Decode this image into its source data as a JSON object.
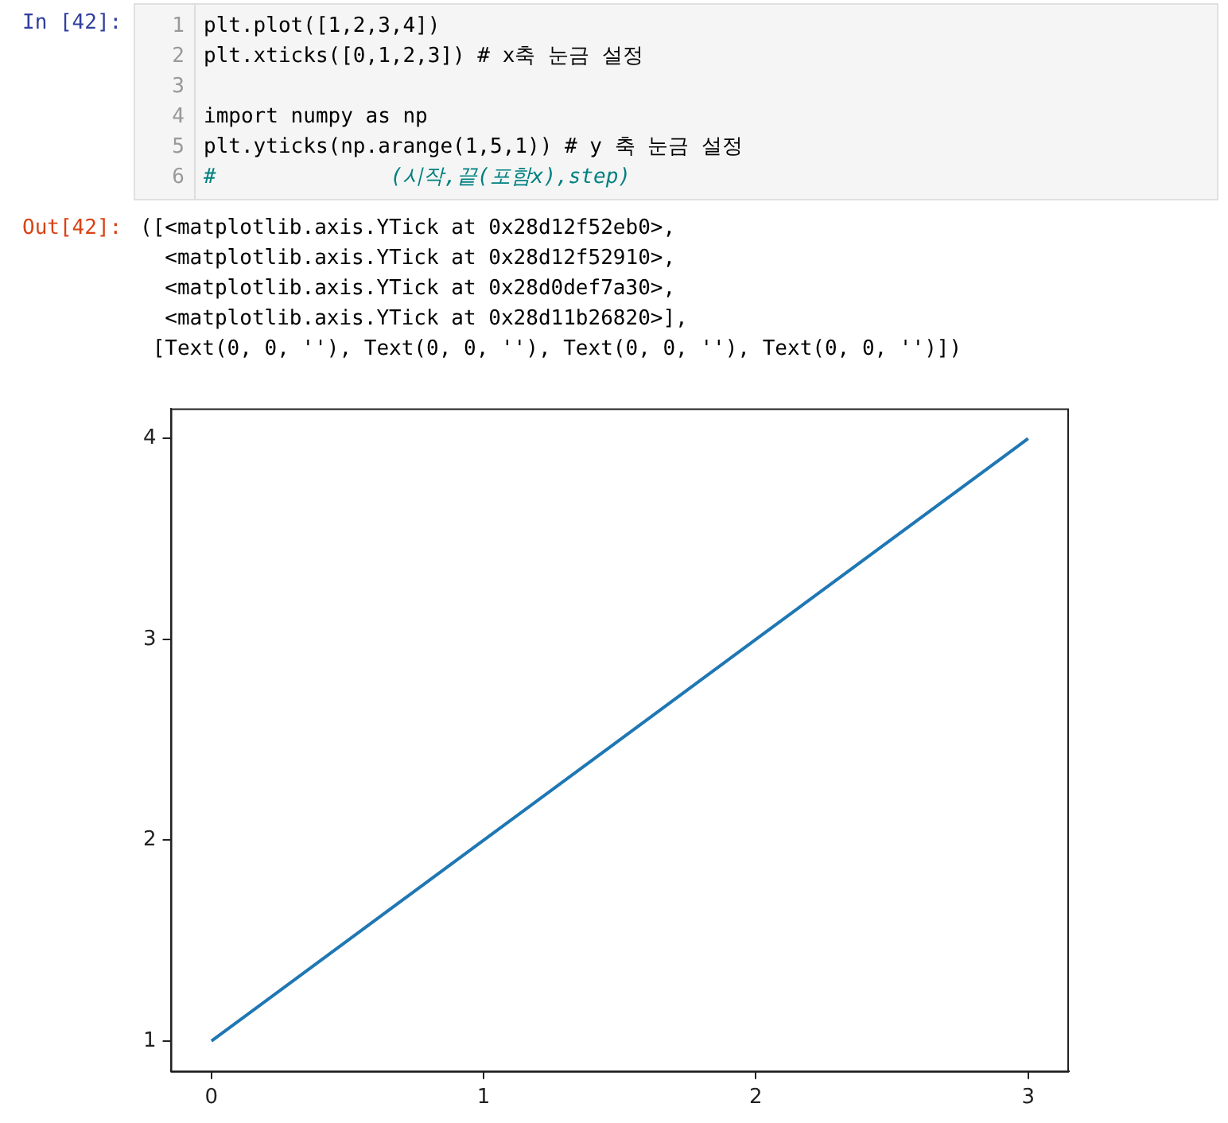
{
  "chart_data": {
    "type": "line",
    "x": [
      0,
      1,
      2,
      3
    ],
    "series": [
      {
        "color": "#1f77b4",
        "values": [
          1,
          2,
          3,
          4
        ]
      }
    ],
    "xlim": [
      -0.15,
      3.15
    ],
    "ylim": [
      0.85,
      4.15
    ],
    "xticks": [
      0,
      1,
      2,
      3
    ],
    "yticks": [
      1,
      2,
      3,
      4
    ],
    "grid": false,
    "legend": false,
    "marker": "none",
    "line_style": "solid",
    "annotations": [
      "In [42]:",
      "1",
      "2",
      "3",
      "4",
      "5",
      "6",
      "plt.plot([1,2,3,4])",
      "plt.xticks([0,1,2,3]) # x축 눈금 설정",
      "import numpy as np",
      "plt.yticks(np.arange(1,5,1)) # y 축 눈금 설정",
      "#              (시작,끝(포함x),step)",
      "Out[42]:",
      "([<matplotlib.axis.YTick at 0x28d12f52eb0>,",
      "  <matplotlib.axis.YTick at 0x28d12f52910>,",
      "  <matplotlib.axis.YTick at 0x28d0def7a30>,",
      "  <matplotlib.axis.YTick at 0x28d11b26820>],",
      " [Text(0, 0, ''), Text(0, 0, ''), Text(0, 0, ''), Text(0, 0, '')])"
    ]
  }
}
